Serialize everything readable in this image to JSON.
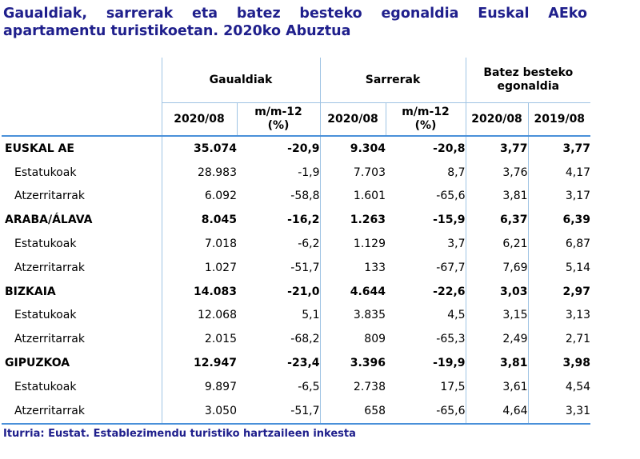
{
  "title": "Gaualdiak, sarrerak eta batez besteko egonaldia Euskal AEko apartamentu turistikoetan. 2020ko Abuztua",
  "header": {
    "groups": [
      "Gaualdiak",
      "Sarrerak",
      "Batez besteko egonaldia"
    ],
    "subs": [
      "2020/08",
      "m/m-12 (%)",
      "2020/08",
      "m/m-12 (%)",
      "2020/08",
      "2019/08"
    ]
  },
  "rows": [
    {
      "label": "EUSKAL AE",
      "values": [
        "35.074",
        "-20,9",
        "9.304",
        "-20,8",
        "3,77",
        "3,77"
      ]
    },
    {
      "label": "Estatukoak",
      "values": [
        "28.983",
        "-1,9",
        "7.703",
        "8,7",
        "3,76",
        "4,17"
      ]
    },
    {
      "label": "Atzerritarrak",
      "values": [
        "6.092",
        "-58,8",
        "1.601",
        "-65,6",
        "3,81",
        "3,17"
      ]
    },
    {
      "label": "ARABA/ÁLAVA",
      "values": [
        "8.045",
        "-16,2",
        "1.263",
        "-15,9",
        "6,37",
        "6,39"
      ]
    },
    {
      "label": "Estatukoak",
      "values": [
        "7.018",
        "-6,2",
        "1.129",
        "3,7",
        "6,21",
        "6,87"
      ]
    },
    {
      "label": "Atzerritarrak",
      "values": [
        "1.027",
        "-51,7",
        "133",
        "-67,7",
        "7,69",
        "5,14"
      ]
    },
    {
      "label": "BIZKAIA",
      "values": [
        "14.083",
        "-21,0",
        "4.644",
        "-22,6",
        "3,03",
        "2,97"
      ]
    },
    {
      "label": "Estatukoak",
      "values": [
        "12.068",
        "5,1",
        "3.835",
        "4,5",
        "3,15",
        "3,13"
      ]
    },
    {
      "label": "Atzerritarrak",
      "values": [
        "2.015",
        "-68,2",
        "809",
        "-65,3",
        "2,49",
        "2,71"
      ]
    },
    {
      "label": "GIPUZKOA",
      "values": [
        "12.947",
        "-23,4",
        "3.396",
        "-19,9",
        "3,81",
        "3,98"
      ]
    },
    {
      "label": "Estatukoak",
      "values": [
        "9.897",
        "-6,5",
        "2.738",
        "17,5",
        "3,61",
        "4,54"
      ]
    },
    {
      "label": "Atzerritarrak",
      "values": [
        "3.050",
        "-51,7",
        "658",
        "-65,6",
        "4,64",
        "3,31"
      ]
    }
  ],
  "source": "Iturria: Eustat. Establezimendu turistiko hartzaileen inkesta"
}
